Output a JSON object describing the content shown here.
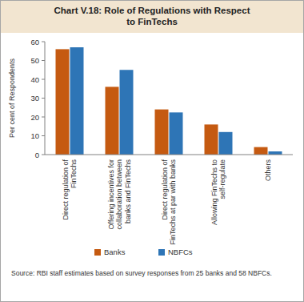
{
  "chart_data": {
    "type": "bar",
    "title": "Chart V.18: Role of Regulations with Respect to FinTechs",
    "ylabel": "Per cent of Respondents",
    "categories": [
      "Direct regulation of FinTechs",
      "Offering incentives for collaboration between banks and FinTechs",
      "Direct regulation of FinTechs at par with banks",
      "Allowing FinTechs to self-regulate",
      "Others"
    ],
    "series": [
      {
        "name": "Banks",
        "color": "#c55a11",
        "values": [
          56,
          36,
          24,
          16,
          4
        ]
      },
      {
        "name": "NBFCs",
        "color": "#2e75b6",
        "values": [
          57,
          45,
          22.4,
          12,
          1.7
        ]
      }
    ],
    "ylim": [
      0,
      60
    ],
    "yticks": [
      0,
      10,
      20,
      30,
      40,
      50,
      60
    ],
    "grid": false,
    "legend": "bottom",
    "source": "Source: RBI staff estimates based on survey responses from 25 banks and 58 NBFCs."
  }
}
